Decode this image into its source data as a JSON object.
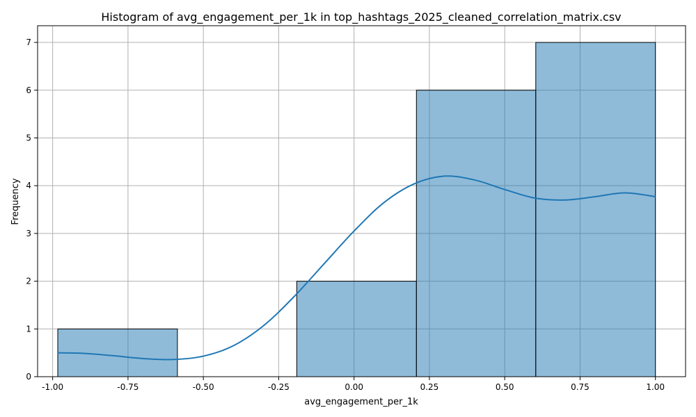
{
  "chart_data": {
    "type": "bar",
    "title": "Histogram of avg_engagement_per_1k in top_hashtags_2025_cleaned_correlation_matrix.csv",
    "xlabel": "avg_engagement_per_1k",
    "ylabel": "Frequency",
    "xlim": [
      -1.05,
      1.1
    ],
    "ylim": [
      0,
      7.35
    ],
    "grid": true,
    "bins": [
      {
        "start": -0.983,
        "end": -0.586,
        "count": 1
      },
      {
        "start": -0.586,
        "end": -0.19,
        "count": 0
      },
      {
        "start": -0.19,
        "end": 0.207,
        "count": 2
      },
      {
        "start": 0.207,
        "end": 0.603,
        "count": 6
      },
      {
        "start": 0.603,
        "end": 1.0,
        "count": 7
      }
    ],
    "kde": {
      "x": [
        -0.983,
        -0.9,
        -0.8,
        -0.7,
        -0.6,
        -0.5,
        -0.4,
        -0.3,
        -0.2,
        -0.1,
        0.0,
        0.1,
        0.2,
        0.3,
        0.4,
        0.5,
        0.6,
        0.7,
        0.8,
        0.9,
        1.0
      ],
      "y": [
        0.5,
        0.49,
        0.44,
        0.38,
        0.36,
        0.43,
        0.65,
        1.07,
        1.67,
        2.36,
        3.05,
        3.65,
        4.04,
        4.2,
        4.12,
        3.92,
        3.74,
        3.7,
        3.77,
        3.85,
        3.77
      ]
    },
    "xticks": [
      "-1.00",
      "-0.75",
      "-0.50",
      "-0.25",
      "0.00",
      "0.25",
      "0.50",
      "0.75",
      "1.00"
    ],
    "xtick_values": [
      -1.0,
      -0.75,
      -0.5,
      -0.25,
      0.0,
      0.25,
      0.5,
      0.75,
      1.0
    ],
    "yticks": [
      "0",
      "1",
      "2",
      "3",
      "4",
      "5",
      "6",
      "7"
    ],
    "ytick_values": [
      0,
      1,
      2,
      3,
      4,
      5,
      6,
      7
    ]
  }
}
